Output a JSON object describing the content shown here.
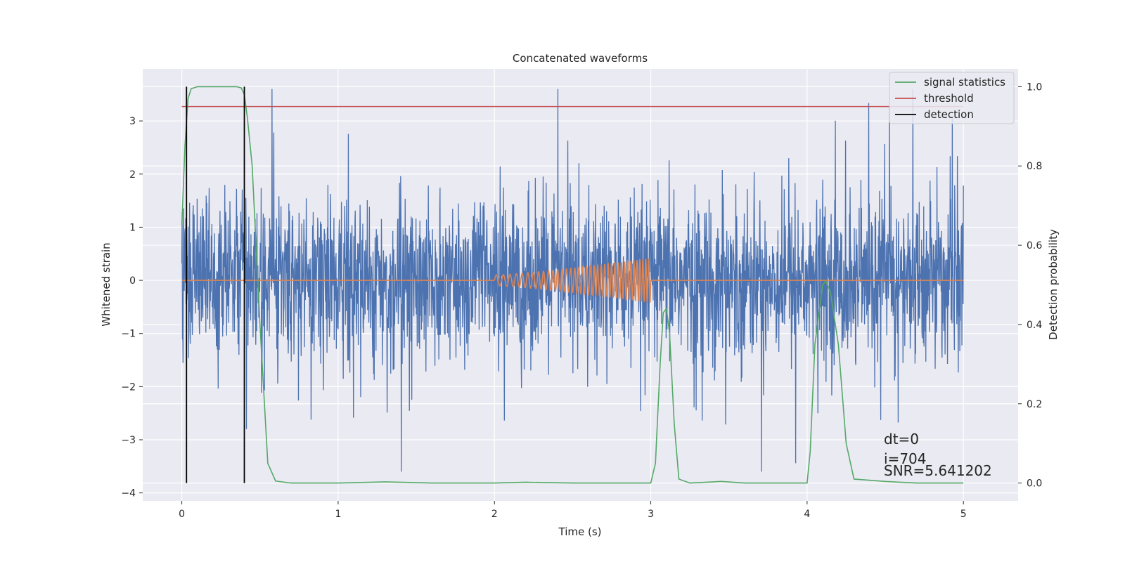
{
  "chart_data": {
    "type": "line",
    "title": "Concatenated waveforms",
    "xlabel": "Time (s)",
    "ylabel": "Whitened strain",
    "y2label": "Detection probability",
    "xlim": [
      -0.25,
      5.35
    ],
    "ylim": [
      -4.15,
      3.98
    ],
    "y2lim": [
      -0.045,
      1.045
    ],
    "xticks": [
      0,
      1,
      2,
      3,
      4,
      5
    ],
    "xtick_labels": [
      "0",
      "1",
      "2",
      "3",
      "4",
      "5"
    ],
    "yticks": [
      -4,
      -3,
      -2,
      -1,
      0,
      1,
      2,
      3
    ],
    "ytick_labels": [
      "−4",
      "−3",
      "−2",
      "−1",
      "0",
      "1",
      "2",
      "3"
    ],
    "y2ticks": [
      0.0,
      0.2,
      0.4,
      0.6,
      0.8,
      1.0
    ],
    "y2tick_labels": [
      "0.0",
      "0.2",
      "0.4",
      "0.6",
      "0.8",
      "1.0"
    ],
    "grid": true,
    "legend_position": "top-right",
    "colors": {
      "background": "#eaeaf2",
      "grid": "#ffffff",
      "strain": "#4c72b0",
      "template": "#dd8452",
      "signal_statistics": "#55a868",
      "threshold": "#c44e52",
      "detection": "#000000"
    },
    "noise": {
      "t_start": 0,
      "t_end": 5,
      "amplitude_range": [
        -3.6,
        3.6
      ]
    },
    "template": {
      "t_start": 2.0,
      "t_end": 3.0,
      "amplitude_start": 0.1,
      "amplitude_end": 0.42,
      "cycles": 38
    },
    "series": [
      {
        "name": "signal statistics",
        "axis": "right",
        "x": [
          0,
          0.02,
          0.04,
          0.06,
          0.1,
          0.2,
          0.35,
          0.38,
          0.4,
          0.42,
          0.45,
          0.5,
          0.55,
          0.6,
          0.7,
          1.0,
          1.3,
          1.6,
          2.0,
          2.2,
          2.5,
          3.0,
          3.03,
          3.06,
          3.08,
          3.1,
          3.12,
          3.15,
          3.18,
          3.25,
          3.45,
          3.6,
          4.0,
          4.02,
          4.05,
          4.1,
          4.12,
          4.15,
          4.2,
          4.25,
          4.3,
          4.5,
          4.7,
          5.0
        ],
        "y": [
          0.65,
          0.85,
          0.97,
          0.995,
          1.0,
          1.0,
          1.0,
          0.997,
          0.98,
          0.92,
          0.8,
          0.4,
          0.05,
          0.005,
          0.0,
          0.0,
          0.003,
          0.0,
          0.0,
          0.002,
          0.0,
          0.0,
          0.05,
          0.3,
          0.43,
          0.44,
          0.38,
          0.15,
          0.01,
          0.0,
          0.004,
          0.0,
          0.0,
          0.08,
          0.35,
          0.5,
          0.51,
          0.48,
          0.35,
          0.1,
          0.01,
          0.004,
          0.0,
          0.0
        ]
      },
      {
        "name": "threshold",
        "axis": "right",
        "x": [
          0,
          5
        ],
        "y": [
          0.95,
          0.95
        ]
      },
      {
        "name": "detection",
        "axis": "right",
        "x": [
          0.03,
          0.4
        ],
        "y_range": [
          0,
          1
        ]
      }
    ],
    "legend": [
      "signal statistics",
      "threshold",
      "detection"
    ],
    "annotations": [
      "dt=0",
      "i=704",
      "SNR=5.641202"
    ]
  }
}
